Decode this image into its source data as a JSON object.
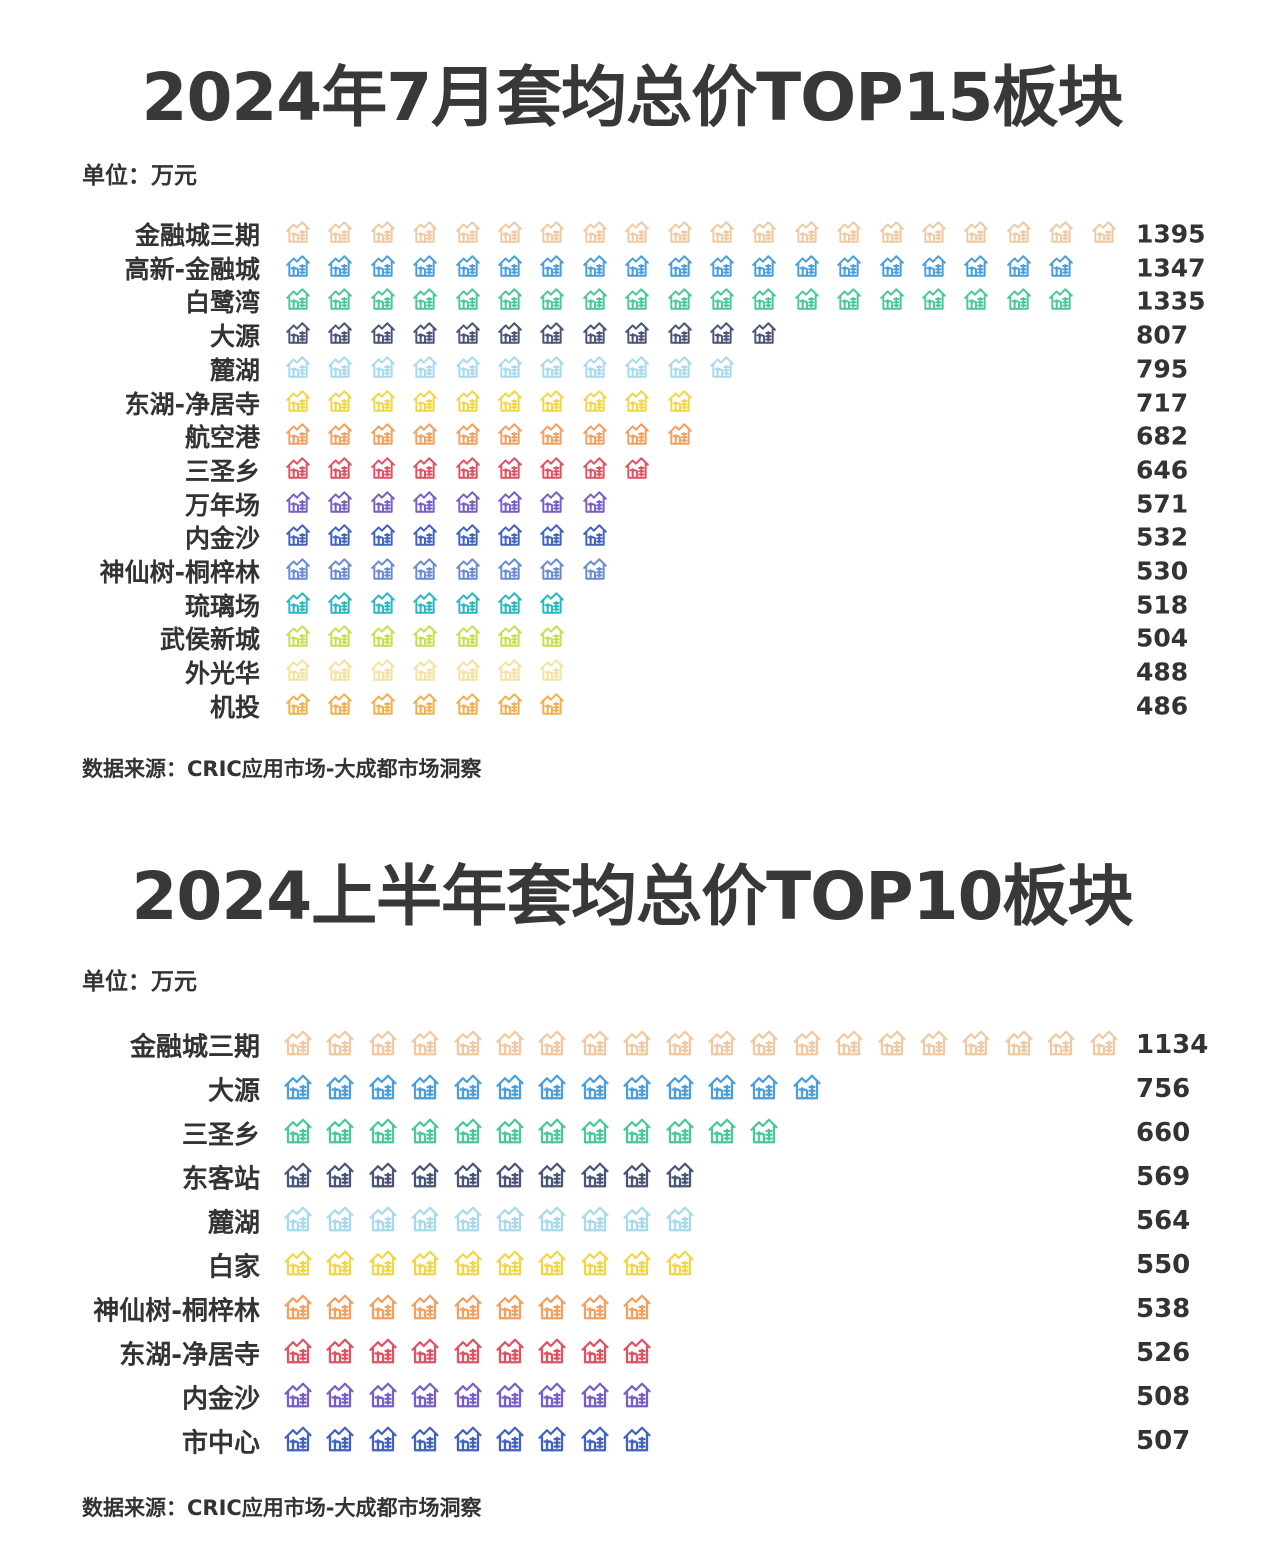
{
  "chart_data": [
    {
      "type": "pictogram-bar",
      "title": "2024年7月套均总价TOP15板块",
      "unit": "单位：万元",
      "source": "数据来源：CRIC应用市场-大成都市场洞察",
      "icon": "house-icon",
      "categories": [
        "金融城三期",
        "高新-金融城",
        "白鹭湾",
        "大源",
        "麓湖",
        "东湖-净居寺",
        "航空港",
        "三圣乡",
        "万年场",
        "内金沙",
        "神仙树-桐梓林",
        "琉璃场",
        "武侯新城",
        "外光华",
        "机投"
      ],
      "values": [
        1395,
        1347,
        1335,
        807,
        795,
        717,
        682,
        646,
        571,
        532,
        530,
        518,
        504,
        488,
        486
      ],
      "icon_counts": [
        20,
        19,
        19,
        12,
        11,
        10,
        10,
        9,
        8,
        8,
        8,
        7,
        7,
        7,
        7
      ],
      "colors": [
        "#f0c9a2",
        "#4a9edb",
        "#4cc79a",
        "#4a5479",
        "#a9d9ec",
        "#f0d648",
        "#f0a060",
        "#df5262",
        "#7a5ec8",
        "#4262c0",
        "#6a8ad2",
        "#29b8c2",
        "#c6df50",
        "#f5e1a2",
        "#f0b050"
      ]
    },
    {
      "type": "pictogram-bar",
      "title": "2024上半年套均总价TOP10板块",
      "unit": "单位：万元",
      "source": "数据来源：CRIC应用市场-大成都市场洞察",
      "icon": "house-icon",
      "categories": [
        "金融城三期",
        "大源",
        "三圣乡",
        "东客站",
        "麓湖",
        "白家",
        "神仙树-桐梓林",
        "东湖-净居寺",
        "内金沙",
        "市中心"
      ],
      "values": [
        1134,
        756,
        660,
        569,
        564,
        550,
        538,
        526,
        508,
        507
      ],
      "icon_counts": [
        20,
        13,
        12,
        10,
        10,
        10,
        9,
        9,
        9,
        9
      ],
      "colors": [
        "#f0c9a2",
        "#4a9edb",
        "#4cc79a",
        "#4a5479",
        "#a9d9ec",
        "#f0d648",
        "#f0a060",
        "#df5262",
        "#7a5ec8",
        "#4262c0"
      ]
    }
  ]
}
